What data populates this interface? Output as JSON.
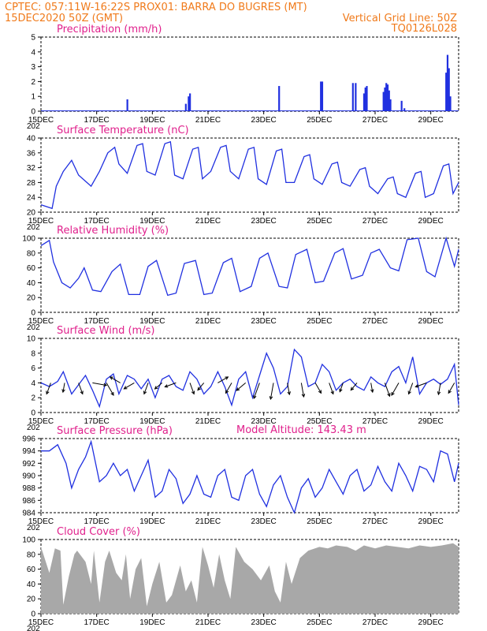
{
  "header": {
    "left_line1": "CPTEC:  057:11W-16:22S  PROX01: BARRA DO BUGRES (MT)",
    "left_line2": "15DEC2020 50Z (GMT)",
    "right_line2": "Vertical Grid Line: 50Z",
    "right_line3": "TQ0126L028",
    "model_altitude": "Model Altitude: 143.43 m"
  },
  "colors": {
    "header": "#f07a1a",
    "panel_title": "#e0208c",
    "series": "#2030e0",
    "cloud": "#a8a8a8"
  },
  "x_axis": {
    "tick_labels": [
      "15DEC",
      "17DEC",
      "19DEC",
      "21DEC",
      "23DEC",
      "25DEC",
      "27DEC",
      "29DEC"
    ],
    "stub_label": "202"
  },
  "chart_data": [
    {
      "type": "bar",
      "title": "Precipitation (mm/h)",
      "ylim": [
        0,
        5
      ],
      "yticks": [
        "0",
        "1",
        "2",
        "3",
        "4",
        "5"
      ],
      "x": [
        3.1,
        5.2,
        5.3,
        5.35,
        8.55,
        10.05,
        10.1,
        11.2,
        11.3,
        11.6,
        11.65,
        11.7,
        12.3,
        12.35,
        12.4,
        12.45,
        12.5,
        12.55,
        12.95,
        13.05,
        14.55,
        14.6,
        14.65,
        14.7
      ],
      "values": [
        0.8,
        0.5,
        1.0,
        1.2,
        1.7,
        2.0,
        2.0,
        1.9,
        1.9,
        1.2,
        1.6,
        1.7,
        1.3,
        1.6,
        1.9,
        1.8,
        1.4,
        0.8,
        0.7,
        0.2,
        2.6,
        3.8,
        2.9,
        1.0
      ]
    },
    {
      "type": "line",
      "title": "Surface Temperature (nC)",
      "ylim": [
        20,
        40
      ],
      "yticks": [
        "20",
        "24",
        "28",
        "32",
        "36",
        "40"
      ],
      "x": [
        0,
        0.4,
        0.55,
        0.8,
        1.1,
        1.35,
        1.65,
        1.8,
        2.1,
        2.4,
        2.65,
        2.8,
        3.1,
        3.45,
        3.65,
        3.8,
        4.1,
        4.45,
        4.65,
        4.8,
        5.1,
        5.45,
        5.65,
        5.8,
        6.1,
        6.45,
        6.65,
        6.8,
        7.1,
        7.45,
        7.65,
        7.8,
        8.1,
        8.45,
        8.65,
        8.8,
        9.1,
        9.45,
        9.65,
        9.8,
        10.1,
        10.45,
        10.65,
        10.8,
        11.1,
        11.45,
        11.65,
        11.8,
        12.1,
        12.45,
        12.65,
        12.8,
        13.1,
        13.45,
        13.65,
        13.8,
        14.1,
        14.45,
        14.65,
        14.8,
        15.0
      ],
      "values": [
        22,
        21,
        27,
        31,
        34,
        30,
        28,
        27,
        31,
        36,
        37.5,
        33,
        30.5,
        38,
        38.5,
        31,
        30,
        38.5,
        39,
        30,
        29,
        37,
        37.5,
        29,
        31,
        37.5,
        38,
        31,
        29,
        37,
        37.5,
        29,
        27.5,
        36.5,
        37,
        28,
        28,
        35,
        35.5,
        29,
        27.5,
        33,
        33.5,
        28,
        27,
        31.5,
        32,
        27,
        25,
        29,
        29.5,
        25,
        24,
        30.5,
        31,
        24,
        25,
        32.5,
        33,
        25,
        28
      ]
    },
    {
      "type": "line",
      "title": "Relative Humidity (%)",
      "ylim": [
        0,
        100
      ],
      "yticks": [
        "0",
        "20",
        "40",
        "60",
        "80",
        "100"
      ],
      "x": [
        0,
        0.3,
        0.45,
        0.75,
        1.05,
        1.35,
        1.55,
        1.85,
        2.15,
        2.55,
        2.85,
        3.15,
        3.55,
        3.85,
        4.15,
        4.55,
        4.85,
        5.15,
        5.55,
        5.85,
        6.15,
        6.55,
        6.85,
        7.15,
        7.55,
        7.85,
        8.15,
        8.55,
        8.85,
        9.15,
        9.55,
        9.85,
        10.15,
        10.55,
        10.85,
        11.15,
        11.55,
        11.85,
        12.15,
        12.55,
        12.85,
        13.15,
        13.55,
        13.85,
        14.15,
        14.55,
        14.85,
        15.0
      ],
      "values": [
        90,
        97,
        68,
        40,
        33,
        46,
        60,
        30,
        28,
        55,
        65,
        24,
        24,
        62,
        70,
        23,
        26,
        66,
        70,
        24,
        26,
        67,
        73,
        28,
        35,
        73,
        80,
        35,
        33,
        78,
        85,
        40,
        42,
        80,
        86,
        45,
        50,
        80,
        85,
        60,
        56,
        98,
        100,
        55,
        48,
        100,
        62,
        85
      ]
    },
    {
      "type": "line",
      "title": "Surface Wind (m/s)",
      "ylim": [
        0,
        10
      ],
      "yticks": [
        "0",
        "2",
        "4",
        "6",
        "8",
        "10"
      ],
      "x": [
        0,
        0.3,
        0.6,
        0.8,
        1.1,
        1.4,
        1.6,
        1.85,
        2.1,
        2.35,
        2.6,
        2.8,
        3.1,
        3.35,
        3.6,
        3.85,
        4.1,
        4.35,
        4.6,
        4.85,
        5.1,
        5.35,
        5.6,
        5.85,
        6.1,
        6.35,
        6.6,
        6.85,
        7.1,
        7.35,
        7.6,
        7.85,
        8.1,
        8.35,
        8.6,
        8.85,
        9.1,
        9.35,
        9.6,
        9.85,
        10.1,
        10.35,
        10.6,
        10.85,
        11.1,
        11.35,
        11.6,
        11.85,
        12.1,
        12.35,
        12.6,
        12.85,
        13.1,
        13.35,
        13.6,
        13.85,
        14.1,
        14.35,
        14.6,
        14.85,
        15.0
      ],
      "values": [
        4,
        3.5,
        4.2,
        5.5,
        2.5,
        4,
        5,
        3,
        0.8,
        4.5,
        5.2,
        2.5,
        5,
        4.5,
        3.2,
        4.5,
        2,
        4.5,
        5,
        3.5,
        3,
        5.5,
        4.5,
        2.5,
        3.5,
        5.5,
        3.5,
        1,
        4.5,
        5.5,
        2,
        5,
        8,
        6,
        2.5,
        3.5,
        8.5,
        7.5,
        3.5,
        4,
        6.5,
        5.5,
        3,
        4,
        4.5,
        3.5,
        3,
        4.8,
        4,
        3.5,
        5.5,
        6.2,
        4,
        7.5,
        2.5,
        4,
        4.5,
        3.8,
        4.5,
        6.5,
        1
      ]
    },
    {
      "type": "line",
      "title": "Surface Pressure (hPa)",
      "ylim": [
        984,
        996
      ],
      "yticks": [
        "984",
        "986",
        "988",
        "990",
        "992",
        "994",
        "996"
      ],
      "x": [
        0,
        0.3,
        0.6,
        0.9,
        1.1,
        1.35,
        1.6,
        1.8,
        2.1,
        2.35,
        2.6,
        2.85,
        3.1,
        3.35,
        3.6,
        3.85,
        4.1,
        4.35,
        4.6,
        4.85,
        5.1,
        5.35,
        5.6,
        5.85,
        6.1,
        6.35,
        6.6,
        6.85,
        7.1,
        7.35,
        7.6,
        7.85,
        8.1,
        8.35,
        8.6,
        8.85,
        9.1,
        9.35,
        9.6,
        9.85,
        10.1,
        10.35,
        10.6,
        10.85,
        11.1,
        11.35,
        11.6,
        11.85,
        12.1,
        12.35,
        12.6,
        12.85,
        13.1,
        13.35,
        13.6,
        13.85,
        14.1,
        14.35,
        14.6,
        14.85,
        15.0
      ],
      "values": [
        994,
        994,
        995,
        992,
        988,
        991,
        993,
        995.5,
        989,
        990,
        992,
        990,
        991,
        987.5,
        990,
        992.5,
        986.5,
        987.5,
        991,
        989.5,
        985.5,
        987,
        990,
        987,
        986.5,
        990,
        991,
        986.5,
        986,
        990,
        991,
        987,
        985,
        988.5,
        990,
        986.5,
        984,
        988,
        989.5,
        986.5,
        988,
        991,
        989,
        987,
        990,
        991,
        987.5,
        988.5,
        991.5,
        989,
        987.5,
        992,
        990,
        987.5,
        991.5,
        991,
        989,
        994,
        993.5,
        989,
        992
      ]
    },
    {
      "type": "area",
      "title": "Cloud Cover (%)",
      "ylim": [
        0,
        100
      ],
      "yticks": [
        "0",
        "20",
        "40",
        "60",
        "80",
        "100"
      ],
      "x": [
        0,
        0.3,
        0.5,
        0.7,
        0.8,
        1,
        1.2,
        1.3,
        1.6,
        1.8,
        1.9,
        2.1,
        2.3,
        2.45,
        2.7,
        2.9,
        3.05,
        3.2,
        3.4,
        3.6,
        3.8,
        4.0,
        4.25,
        4.5,
        4.7,
        5.0,
        5.2,
        5.4,
        5.6,
        5.8,
        6.0,
        6.2,
        6.4,
        6.6,
        6.8,
        7.0,
        7.3,
        7.6,
        7.9,
        8.2,
        8.4,
        8.6,
        8.8,
        9.0,
        9.3,
        9.6,
        10.0,
        10.3,
        10.6,
        11.0,
        11.3,
        11.6,
        12.0,
        12.4,
        12.8,
        13.2,
        13.6,
        14.0,
        14.4,
        14.8,
        15.0
      ],
      "values": [
        90,
        55,
        88,
        85,
        12,
        50,
        80,
        85,
        70,
        40,
        85,
        15,
        70,
        85,
        55,
        45,
        80,
        20,
        60,
        75,
        10,
        40,
        70,
        15,
        25,
        65,
        30,
        45,
        15,
        90,
        65,
        35,
        80,
        45,
        20,
        90,
        70,
        60,
        45,
        65,
        30,
        15,
        70,
        40,
        75,
        85,
        90,
        88,
        92,
        90,
        85,
        92,
        88,
        92,
        90,
        88,
        92,
        90,
        92,
        95,
        90
      ]
    }
  ],
  "wind_barbs": {
    "x": [
      0.35,
      0.85,
      1.35,
      1.85,
      2.35,
      2.85,
      3.35,
      3.85,
      4.35,
      4.85,
      5.35,
      5.85,
      6.35,
      6.85,
      7.35,
      7.85,
      8.35,
      8.85,
      9.35,
      9.85,
      10.35,
      10.85,
      11.35,
      11.85,
      12.35,
      12.85,
      13.35,
      13.85,
      14.35,
      14.85
    ],
    "dir": [
      200,
      190,
      160,
      100,
      150,
      300,
      240,
      200,
      230,
      250,
      160,
      220,
      60,
      210,
      230,
      200,
      190,
      170,
      170,
      150,
      160,
      200,
      220,
      170,
      160,
      210,
      200,
      250,
      190,
      210
    ],
    "speed": [
      3,
      2,
      3,
      4,
      4,
      3,
      3,
      3,
      2,
      3,
      3,
      2,
      3,
      3,
      3,
      5,
      5,
      3,
      4,
      3,
      3,
      2,
      2,
      2,
      4,
      4,
      3,
      3,
      3,
      3
    ]
  }
}
